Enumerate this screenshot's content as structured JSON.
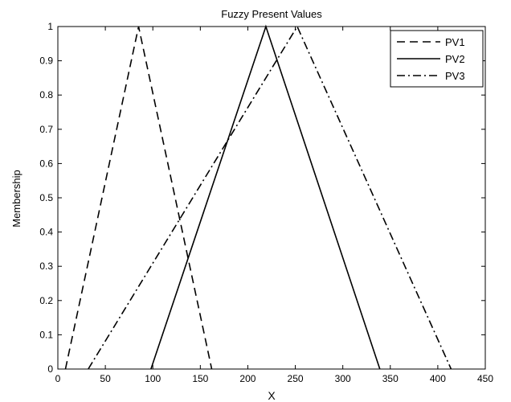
{
  "chart_data": {
    "type": "line",
    "title": "Fuzzy Present Values",
    "xlabel": "X",
    "ylabel": "Membership",
    "xlim": [
      0,
      450
    ],
    "ylim": [
      0,
      1
    ],
    "xticks": [
      0,
      50,
      100,
      150,
      200,
      250,
      300,
      350,
      400,
      450
    ],
    "yticks": [
      0,
      0.1,
      0.2,
      0.3,
      0.4,
      0.5,
      0.6,
      0.7,
      0.8,
      0.9,
      1
    ],
    "grid": false,
    "legend_position": "top-right",
    "series": [
      {
        "name": "PV1",
        "style": "dashed",
        "color": "#000000",
        "x": [
          8,
          85,
          162
        ],
        "y": [
          0,
          1,
          0
        ]
      },
      {
        "name": "PV2",
        "style": "solid",
        "color": "#000000",
        "x": [
          98,
          219,
          339
        ],
        "y": [
          0,
          1,
          0
        ]
      },
      {
        "name": "PV3",
        "style": "dashdot",
        "color": "#000000",
        "x": [
          32,
          252,
          414
        ],
        "y": [
          0,
          1,
          0
        ]
      }
    ]
  }
}
